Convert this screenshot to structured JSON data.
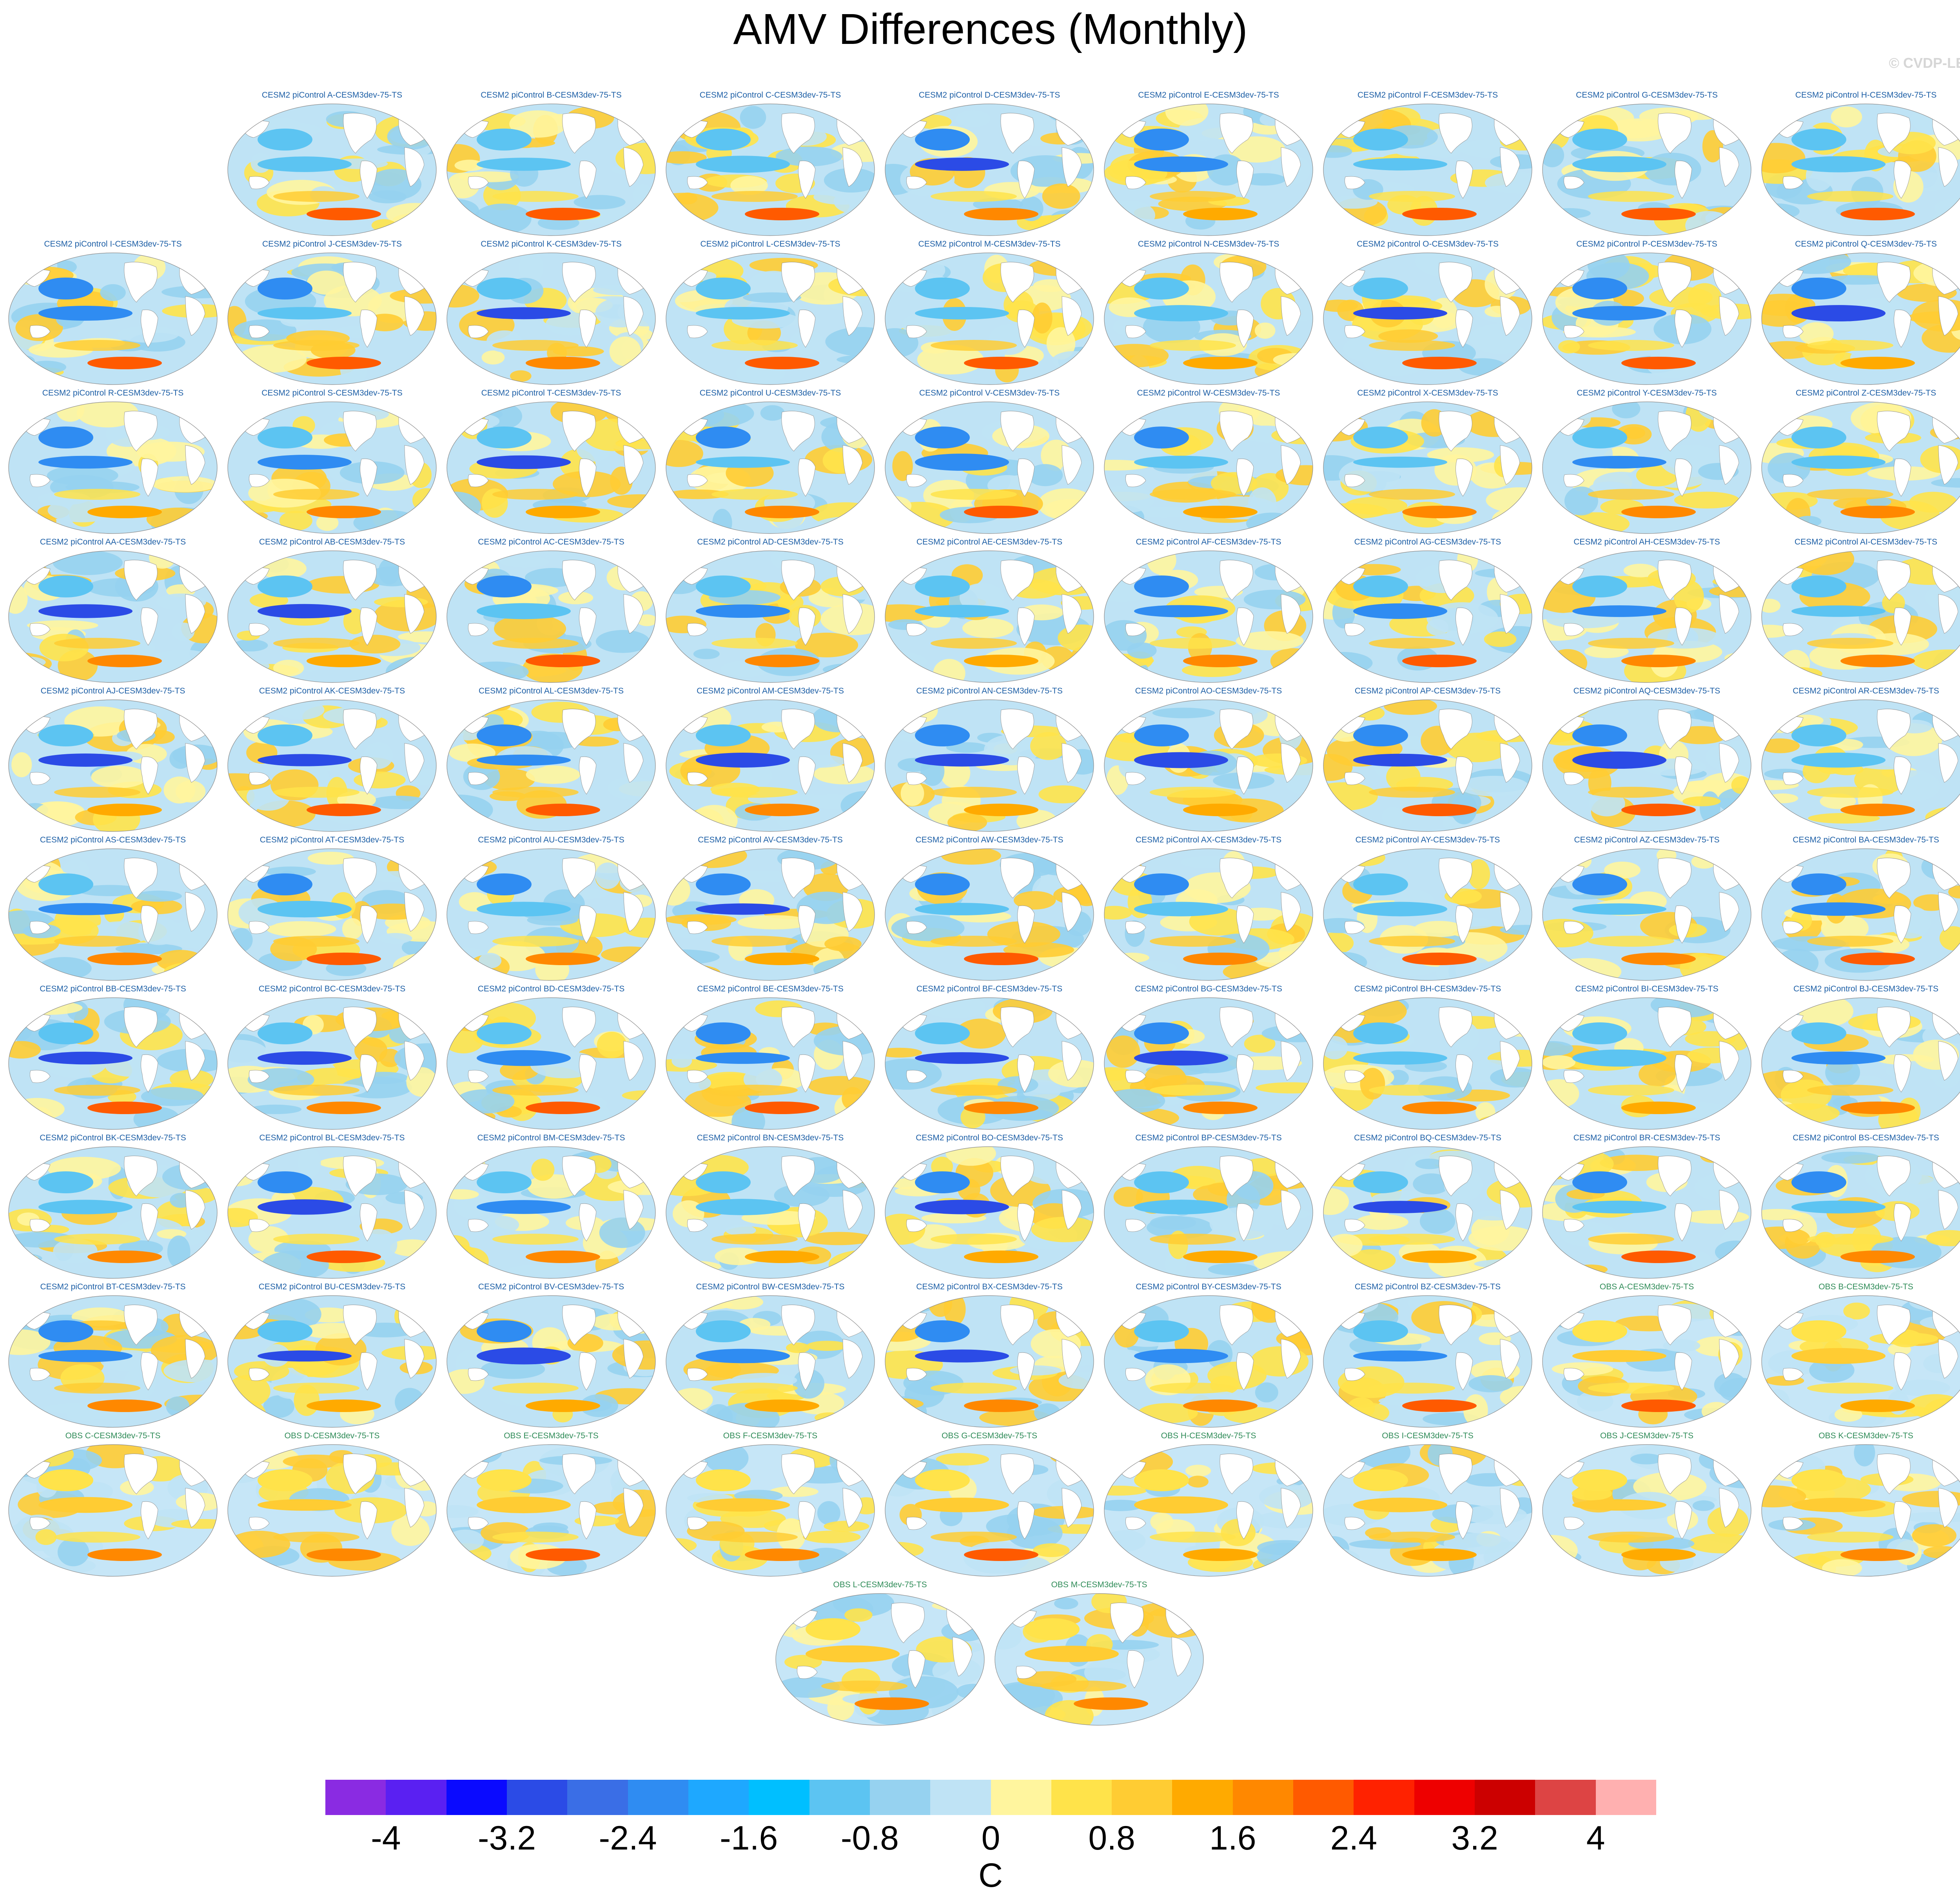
{
  "title": "AMV Differences (Monthly)",
  "watermark": "© CVDP-LE",
  "chart_data": {
    "type": "heatmap",
    "title": "AMV Differences (Monthly)",
    "panel_type": "global sea-surface temperature difference map",
    "panels": [
      "CESM2 piControl A-CESM3dev-75-TS",
      "CESM2 piControl B-CESM3dev-75-TS",
      "CESM2 piControl C-CESM3dev-75-TS",
      "CESM2 piControl D-CESM3dev-75-TS",
      "CESM2 piControl E-CESM3dev-75-TS",
      "CESM2 piControl F-CESM3dev-75-TS",
      "CESM2 piControl G-CESM3dev-75-TS",
      "CESM2 piControl H-CESM3dev-75-TS",
      "CESM2 piControl I-CESM3dev-75-TS",
      "CESM2 piControl J-CESM3dev-75-TS",
      "CESM2 piControl K-CESM3dev-75-TS",
      "CESM2 piControl L-CESM3dev-75-TS",
      "CESM2 piControl M-CESM3dev-75-TS",
      "CESM2 piControl N-CESM3dev-75-TS",
      "CESM2 piControl O-CESM3dev-75-TS",
      "CESM2 piControl P-CESM3dev-75-TS",
      "CESM2 piControl Q-CESM3dev-75-TS",
      "CESM2 piControl R-CESM3dev-75-TS",
      "CESM2 piControl S-CESM3dev-75-TS",
      "CESM2 piControl T-CESM3dev-75-TS",
      "CESM2 piControl U-CESM3dev-75-TS",
      "CESM2 piControl V-CESM3dev-75-TS",
      "CESM2 piControl W-CESM3dev-75-TS",
      "CESM2 piControl X-CESM3dev-75-TS",
      "CESM2 piControl Y-CESM3dev-75-TS",
      "CESM2 piControl Z-CESM3dev-75-TS",
      "CESM2 piControl AA-CESM3dev-75-TS",
      "CESM2 piControl AB-CESM3dev-75-TS",
      "CESM2 piControl AC-CESM3dev-75-TS",
      "CESM2 piControl AD-CESM3dev-75-TS",
      "CESM2 piControl AE-CESM3dev-75-TS",
      "CESM2 piControl AF-CESM3dev-75-TS",
      "CESM2 piControl AG-CESM3dev-75-TS",
      "CESM2 piControl AH-CESM3dev-75-TS",
      "CESM2 piControl AI-CESM3dev-75-TS",
      "CESM2 piControl AJ-CESM3dev-75-TS",
      "CESM2 piControl AK-CESM3dev-75-TS",
      "CESM2 piControl AL-CESM3dev-75-TS",
      "CESM2 piControl AM-CESM3dev-75-TS",
      "CESM2 piControl AN-CESM3dev-75-TS",
      "CESM2 piControl AO-CESM3dev-75-TS",
      "CESM2 piControl AP-CESM3dev-75-TS",
      "CESM2 piControl AQ-CESM3dev-75-TS",
      "CESM2 piControl AR-CESM3dev-75-TS",
      "CESM2 piControl AS-CESM3dev-75-TS",
      "CESM2 piControl AT-CESM3dev-75-TS",
      "CESM2 piControl AU-CESM3dev-75-TS",
      "CESM2 piControl AV-CESM3dev-75-TS",
      "CESM2 piControl AW-CESM3dev-75-TS",
      "CESM2 piControl AX-CESM3dev-75-TS",
      "CESM2 piControl AY-CESM3dev-75-TS",
      "CESM2 piControl AZ-CESM3dev-75-TS",
      "CESM2 piControl BA-CESM3dev-75-TS",
      "CESM2 piControl BB-CESM3dev-75-TS",
      "CESM2 piControl BC-CESM3dev-75-TS",
      "CESM2 piControl BD-CESM3dev-75-TS",
      "CESM2 piControl BE-CESM3dev-75-TS",
      "CESM2 piControl BF-CESM3dev-75-TS",
      "CESM2 piControl BG-CESM3dev-75-TS",
      "CESM2 piControl BH-CESM3dev-75-TS",
      "CESM2 piControl BI-CESM3dev-75-TS",
      "CESM2 piControl BJ-CESM3dev-75-TS",
      "CESM2 piControl BK-CESM3dev-75-TS",
      "CESM2 piControl BL-CESM3dev-75-TS",
      "CESM2 piControl BM-CESM3dev-75-TS",
      "CESM2 piControl BN-CESM3dev-75-TS",
      "CESM2 piControl BO-CESM3dev-75-TS",
      "CESM2 piControl BP-CESM3dev-75-TS",
      "CESM2 piControl BQ-CESM3dev-75-TS",
      "CESM2 piControl BR-CESM3dev-75-TS",
      "CESM2 piControl BS-CESM3dev-75-TS",
      "CESM2 piControl BT-CESM3dev-75-TS",
      "CESM2 piControl BU-CESM3dev-75-TS",
      "CESM2 piControl BV-CESM3dev-75-TS",
      "CESM2 piControl BW-CESM3dev-75-TS",
      "CESM2 piControl BX-CESM3dev-75-TS",
      "CESM2 piControl BY-CESM3dev-75-TS",
      "CESM2 piControl BZ-CESM3dev-75-TS",
      "OBS A-CESM3dev-75-TS",
      "OBS B-CESM3dev-75-TS",
      "OBS C-CESM3dev-75-TS",
      "OBS D-CESM3dev-75-TS",
      "OBS E-CESM3dev-75-TS",
      "OBS F-CESM3dev-75-TS",
      "OBS G-CESM3dev-75-TS",
      "OBS H-CESM3dev-75-TS",
      "OBS I-CESM3dev-75-TS",
      "OBS J-CESM3dev-75-TS",
      "OBS K-CESM3dev-75-TS",
      "OBS L-CESM3dev-75-TS",
      "OBS M-CESM3dev-75-TS"
    ],
    "colorbar": {
      "unit": "C",
      "range": [
        -4.4,
        4.4
      ],
      "step": 0.4,
      "tick_labels": [
        "-4",
        "-3.2",
        "-2.4",
        "-1.6",
        "-0.8",
        "0",
        "0.8",
        "1.6",
        "2.4",
        "3.2",
        "4"
      ],
      "colors": [
        "#8a2be2",
        "#5a20f2",
        "#0a0aff",
        "#2b4be6",
        "#3a6ee6",
        "#2f8cf2",
        "#1ea8ff",
        "#00bfff",
        "#5cc4f2",
        "#96d2f0",
        "#bfe3f5",
        "#fff59e",
        "#ffe34a",
        "#ffcc33",
        "#ffaa00",
        "#ff8800",
        "#ff5a00",
        "#ff2200",
        "#ee0000",
        "#cc0000",
        "#dd4444",
        "#ffb0b0"
      ]
    }
  }
}
